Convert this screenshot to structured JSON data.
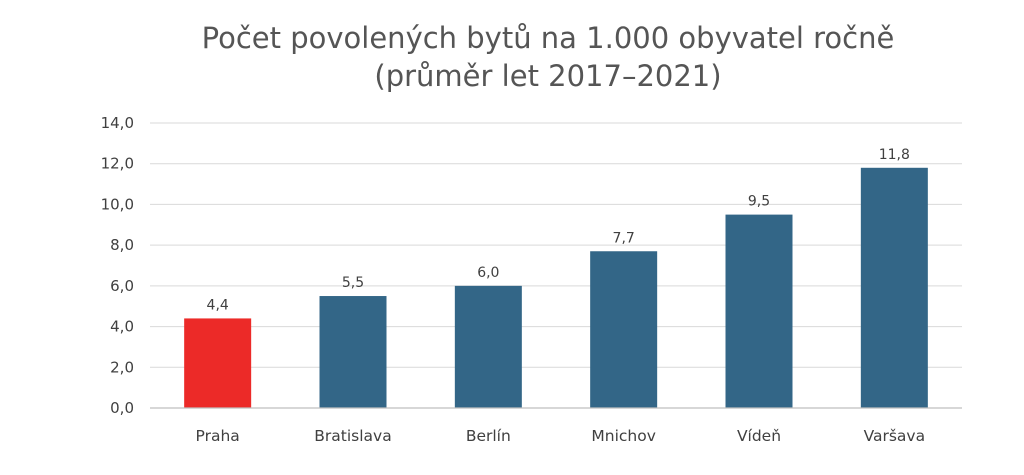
{
  "chart_data": {
    "type": "bar",
    "title": "Počet povolených bytů na 1.000 obyvatel ročně",
    "subtitle": "(průměr let 2017–2021)",
    "xlabel": "",
    "ylabel": "",
    "categories": [
      "Praha",
      "Bratislava",
      "Berlín",
      "Mnichov",
      "Vídeň",
      "Varšava"
    ],
    "values": [
      4.4,
      5.5,
      6.0,
      7.7,
      9.5,
      11.8
    ],
    "value_labels": [
      "4,4",
      "5,5",
      "6,0",
      "7,7",
      "9,5",
      "11,8"
    ],
    "ylim": [
      0,
      14
    ],
    "yticks": [
      0,
      2,
      4,
      6,
      8,
      10,
      12,
      14
    ],
    "ytick_labels": [
      "0,0",
      "2,0",
      "4,0",
      "6,0",
      "8,0",
      "10,0",
      "12,0",
      "14,0"
    ],
    "grid": true,
    "legend": "none",
    "colors": {
      "default_bar": "#336687",
      "highlight_bar": "#ec2a28"
    },
    "highlight_index": 0
  }
}
